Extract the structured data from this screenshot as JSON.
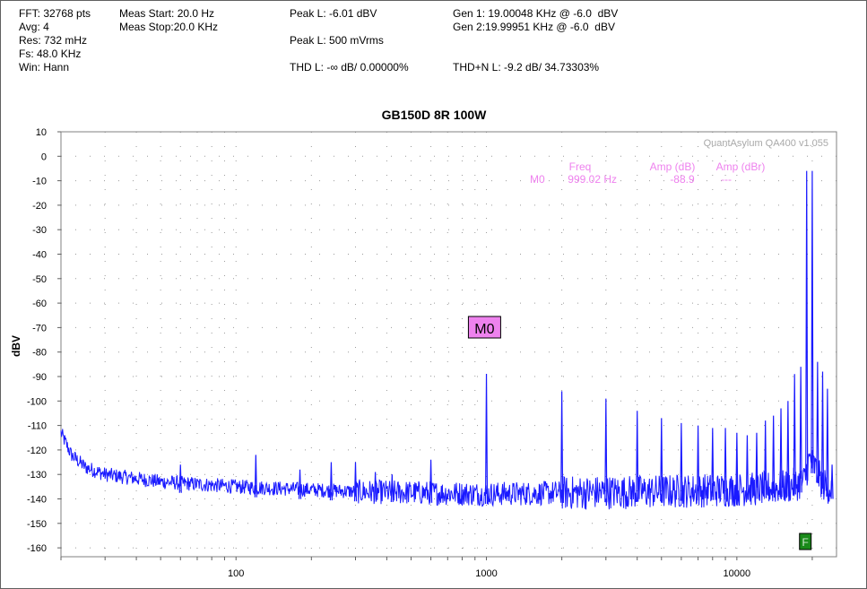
{
  "header": {
    "fft": "FFT: 32768 pts",
    "avg": "Avg: 4",
    "res": "Res: 732 mHz",
    "fs": "Fs: 48.0 KHz",
    "win": "Win: Hann",
    "meas_start": "Meas Start: 20.0 Hz",
    "meas_stop": "Meas Stop:20.0 KHz",
    "peak_dbv": "Peak L: -6.01 dBV",
    "peak_vrms": "Peak L: 500 mVrms",
    "thd": "THD L: -∞ dB/ 0.00000%",
    "gen1": "Gen 1: 19.00048 KHz @ -6.0  dBV",
    "gen2": "Gen 2:19.99951 KHz @ -6.0  dBV",
    "thdn": "THD+N L: -9.2 dB/ 34.73303%"
  },
  "chart_data": {
    "type": "line",
    "title": "GB150D 8R 100W",
    "xlabel": "",
    "ylabel": "dBV",
    "x_scale": "log",
    "xlim": [
      20,
      25000
    ],
    "ylim": [
      -165,
      10
    ],
    "y_ticks": [
      10,
      0,
      -10,
      -20,
      -30,
      -40,
      -50,
      -60,
      -70,
      -80,
      -90,
      -100,
      -110,
      -120,
      -130,
      -140,
      -150,
      -160
    ],
    "x_ticks": [
      100,
      1000,
      10000
    ],
    "grid": true,
    "watermark": "QuantAsylum QA400 v1.055",
    "series_color": "#1a1aff",
    "noise_floor": [
      [
        20,
        -113
      ],
      [
        22,
        -122
      ],
      [
        25,
        -127
      ],
      [
        30,
        -130
      ],
      [
        50,
        -133
      ],
      [
        100,
        -135
      ],
      [
        300,
        -137
      ],
      [
        1000,
        -138
      ],
      [
        5000,
        -137
      ],
      [
        12000,
        -136
      ],
      [
        16000,
        -135
      ],
      [
        18500,
        -133
      ],
      [
        19500,
        -124
      ],
      [
        20500,
        -127
      ],
      [
        22000,
        -134
      ],
      [
        24000,
        -136
      ]
    ],
    "peaks": [
      {
        "f": 19000,
        "db": -6.0
      },
      {
        "f": 20000,
        "db": -6.0
      },
      {
        "f": 60,
        "db": -126
      },
      {
        "f": 120,
        "db": -122
      },
      {
        "f": 180,
        "db": -128
      },
      {
        "f": 240,
        "db": -125
      },
      {
        "f": 300,
        "db": -125
      },
      {
        "f": 360,
        "db": -129
      },
      {
        "f": 420,
        "db": -130
      },
      {
        "f": 600,
        "db": -124
      },
      {
        "f": 1000,
        "db": -88.9
      },
      {
        "f": 2000,
        "db": -96
      },
      {
        "f": 3000,
        "db": -99
      },
      {
        "f": 4000,
        "db": -104
      },
      {
        "f": 5000,
        "db": -107
      },
      {
        "f": 6000,
        "db": -109
      },
      {
        "f": 7000,
        "db": -110
      },
      {
        "f": 8000,
        "db": -111
      },
      {
        "f": 9000,
        "db": -111
      },
      {
        "f": 10000,
        "db": -113
      },
      {
        "f": 11000,
        "db": -114
      },
      {
        "f": 12000,
        "db": -113
      },
      {
        "f": 13000,
        "db": -108
      },
      {
        "f": 14000,
        "db": -106
      },
      {
        "f": 15000,
        "db": -103
      },
      {
        "f": 16000,
        "db": -100
      },
      {
        "f": 17000,
        "db": -89
      },
      {
        "f": 18000,
        "db": -86
      },
      {
        "f": 21000,
        "db": -84
      },
      {
        "f": 22000,
        "db": -88
      },
      {
        "f": 23000,
        "db": -95
      },
      {
        "f": 24000,
        "db": -126
      }
    ],
    "marker": {
      "label": "M0",
      "f": 999.02,
      "db": -88.9
    },
    "marker_table": {
      "col_freq": "Freq",
      "col_amp_db": "Amp (dB)",
      "col_amp_dbr": "Amp (dBr)",
      "row_label": "M0",
      "row_freq": "999.02 Hz",
      "row_amp_db": "-88.9",
      "row_amp_dbr": "---",
      "color": "#ee82ee"
    },
    "f_marker": {
      "label": "F",
      "f": 19000
    }
  }
}
